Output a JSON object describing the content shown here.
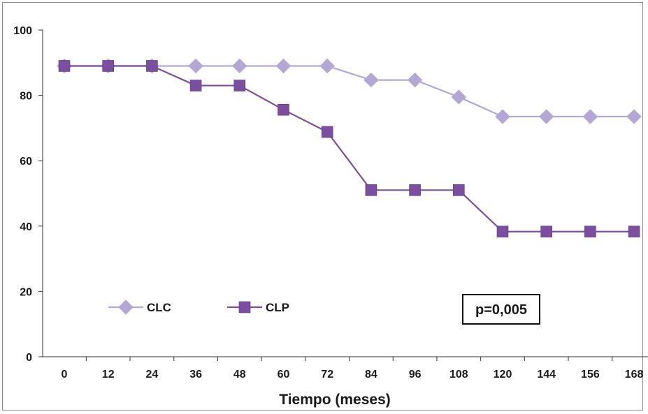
{
  "chart_data": {
    "type": "line",
    "title": "",
    "xlabel": "Tiempo (meses)",
    "ylabel": "",
    "categories": [
      "0",
      "12",
      "24",
      "36",
      "48",
      "60",
      "72",
      "84",
      "96",
      "108",
      "120",
      "144",
      "156",
      "168"
    ],
    "ylim": [
      0,
      100
    ],
    "yticks": [
      0,
      20,
      40,
      60,
      80,
      100
    ],
    "grid": false,
    "legend_position": "bottom-left",
    "series": [
      {
        "name": "CLC",
        "marker": "diamond",
        "color": "#b3a7d6",
        "values": [
          89,
          89,
          89,
          89,
          89,
          89,
          89,
          84.7,
          84.7,
          79.5,
          73.5,
          73.5,
          73.5,
          73.5
        ]
      },
      {
        "name": "CLP",
        "marker": "square",
        "color": "#7b4ea0",
        "values": [
          89,
          89,
          89,
          83,
          83,
          75.6,
          68.8,
          51,
          51,
          51,
          38.3,
          38.3,
          38.3,
          38.3
        ]
      }
    ],
    "annotation": "p=0,005"
  },
  "colors": {
    "axis": "#333333",
    "frame": "#8c8c8c",
    "annotation_border": "#111111"
  }
}
